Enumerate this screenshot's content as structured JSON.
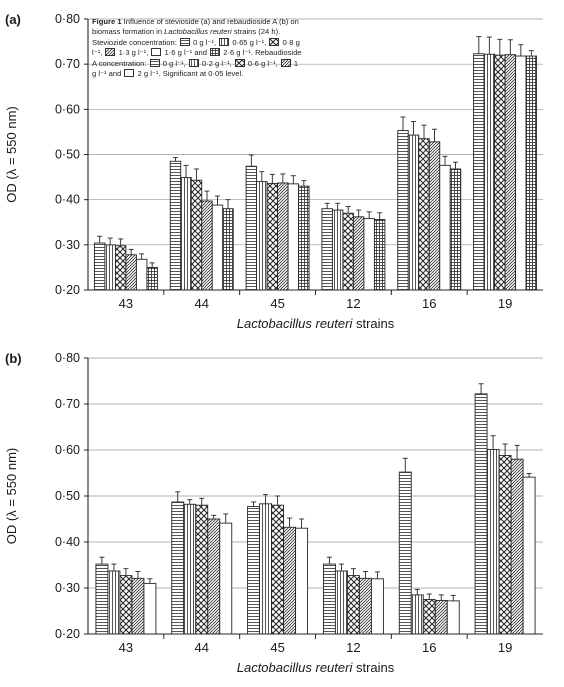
{
  "chart_data": [
    {
      "type": "bar",
      "panel_label": "(a)",
      "categories": [
        "43",
        "44",
        "45",
        "12",
        "16",
        "19"
      ],
      "xlabel": "Lactobacillus reuteri strains",
      "xlabel_italic": "Lactobacillus reuteri",
      "xlabel_rest": " strains",
      "ylabel": "OD (λ = 550 nm)",
      "ylim": [
        0.2,
        0.8
      ],
      "yticks": [
        "0·20",
        "0·30",
        "0·40",
        "0·50",
        "0·60",
        "0·70",
        "0·80"
      ],
      "grid": true,
      "series": [
        {
          "values": [
            0.304,
            0.485,
            0.474,
            0.38,
            0.553,
            0.723
          ],
          "errors": [
            0.015,
            0.008,
            0.025,
            0.012,
            0.03,
            0.038
          ]
        },
        {
          "values": [
            0.3,
            0.449,
            0.44,
            0.377,
            0.543,
            0.722
          ],
          "errors": [
            0.015,
            0.027,
            0.022,
            0.015,
            0.03,
            0.038
          ]
        },
        {
          "values": [
            0.298,
            0.443,
            0.436,
            0.37,
            0.535,
            0.72
          ],
          "errors": [
            0.015,
            0.025,
            0.02,
            0.015,
            0.03,
            0.035
          ]
        },
        {
          "values": [
            0.278,
            0.397,
            0.437,
            0.362,
            0.528,
            0.721
          ],
          "errors": [
            0.012,
            0.022,
            0.02,
            0.015,
            0.028,
            0.033
          ]
        },
        {
          "values": [
            0.268,
            0.388,
            0.435,
            0.358,
            0.476,
            0.718
          ],
          "errors": [
            0.012,
            0.02,
            0.018,
            0.015,
            0.02,
            0.025
          ]
        },
        {
          "values": [
            0.25,
            0.38,
            0.43,
            0.356,
            0.468,
            0.718
          ],
          "errors": [
            0.01,
            0.02,
            0.012,
            0.015,
            0.015,
            0.012
          ]
        }
      ],
      "caption": {
        "title": "Figure 1",
        "line1": " Influence of stevioside (a) and rebaudioside A (b) on biomass formation in ",
        "organism": "Lactobacillus reuteri",
        "line2": " strains (24 h). Steviozide concentration:",
        "legend_a": [
          "0 g l⁻¹,",
          "0·65 g l⁻¹,",
          "0·8 g l⁻¹,",
          "1·3 g l⁻¹,",
          "1·6 g l⁻¹",
          "2·6 g l⁻¹."
        ],
        "legend_a_conj": "and",
        "line3": " Rebaudioside A concentration:",
        "legend_b": [
          "0 g l⁻¹,",
          "0·2 g l⁻¹,",
          "0·6 g l⁻¹,",
          "1 g l⁻¹",
          "2 g l⁻¹."
        ],
        "legend_b_conj": "and",
        "line4": " Significant at 0·05 level."
      }
    },
    {
      "type": "bar",
      "panel_label": "(b)",
      "categories": [
        "43",
        "44",
        "45",
        "12",
        "16",
        "19"
      ],
      "xlabel": "Lactobacillus reuteri strains",
      "xlabel_italic": "Lactobacillus reuteri",
      "xlabel_rest": " strains",
      "ylabel": "OD (λ = 550 nm)",
      "ylim": [
        0.2,
        0.8
      ],
      "yticks": [
        "0·20",
        "0·30",
        "0·40",
        "0·50",
        "0·60",
        "0·70",
        "0·80"
      ],
      "grid": true,
      "series": [
        {
          "values": [
            0.352,
            0.487,
            0.477,
            0.352,
            0.552,
            0.722
          ],
          "errors": [
            0.015,
            0.022,
            0.01,
            0.015,
            0.03,
            0.022
          ]
        },
        {
          "values": [
            0.337,
            0.482,
            0.483,
            0.337,
            0.285,
            0.601
          ],
          "errors": [
            0.015,
            0.01,
            0.02,
            0.015,
            0.012,
            0.03
          ]
        },
        {
          "values": [
            0.327,
            0.48,
            0.48,
            0.327,
            0.275,
            0.588
          ],
          "errors": [
            0.015,
            0.015,
            0.02,
            0.015,
            0.012,
            0.025
          ]
        },
        {
          "values": [
            0.321,
            0.45,
            0.432,
            0.321,
            0.273,
            0.58
          ],
          "errors": [
            0.015,
            0.008,
            0.02,
            0.015,
            0.012,
            0.03
          ]
        },
        {
          "values": [
            0.31,
            0.441,
            0.43,
            0.32,
            0.272,
            0.541
          ],
          "errors": [
            0.01,
            0.02,
            0.02,
            0.015,
            0.012,
            0.008
          ]
        }
      ]
    }
  ],
  "colors": {
    "bar_stroke": "#262626",
    "bar_fill": "#ffffff",
    "grid": "#9a9a9a",
    "axis": "#262626",
    "text": "#1a1a1a"
  }
}
